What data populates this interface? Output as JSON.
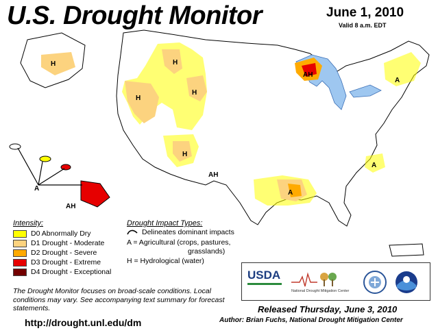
{
  "header": {
    "title": "U.S. Drought Monitor",
    "date": "June 1, 2010",
    "valid": "Valid 8 a.m. EDT"
  },
  "map_labels": {
    "alaska_h": "H",
    "nw_h1": "H",
    "nw_h2": "H",
    "nw_h3": "H",
    "sw_h": "H",
    "nm_ah": "AH",
    "mi_ah": "AH",
    "ne_a": "A",
    "nc_a": "A",
    "la_a": "A",
    "hi_a": "A",
    "hi_ah": "AH"
  },
  "legend": {
    "title": "Intensity:",
    "items": [
      {
        "label": "D0 Abnormally Dry",
        "color": "#ffff00"
      },
      {
        "label": "D1 Drought - Moderate",
        "color": "#fcd37f"
      },
      {
        "label": "D2 Drought - Severe",
        "color": "#ffaa00"
      },
      {
        "label": "D3 Drought - Extreme",
        "color": "#e60000"
      },
      {
        "label": "D4 Drought - Exceptional",
        "color": "#730000"
      }
    ]
  },
  "impacts": {
    "title": "Drought Impact Types:",
    "line1": "Delineates dominant impacts",
    "line2": "A = Agricultural (crops, pastures,",
    "line3": "grasslands)",
    "line4": "H = Hydrological (water)"
  },
  "footnote": "The Drought Monitor focuses on broad-scale conditions. Local conditions may vary. See accompanying text summary for forecast statements.",
  "url": "http://drought.unl.edu/dm",
  "released": "Released Thursday, June 3, 2010",
  "author": "Author: Brian Fuchs, National Drought Mitigation Center",
  "logos": {
    "usda": "USDA",
    "ndmc": "National Drought Mitigation Center"
  },
  "colors": {
    "water": "#9ec7f0",
    "d0": "#ffff00",
    "d1": "#fcd37f",
    "d2": "#ffaa00",
    "d3": "#e60000",
    "d4": "#730000"
  }
}
